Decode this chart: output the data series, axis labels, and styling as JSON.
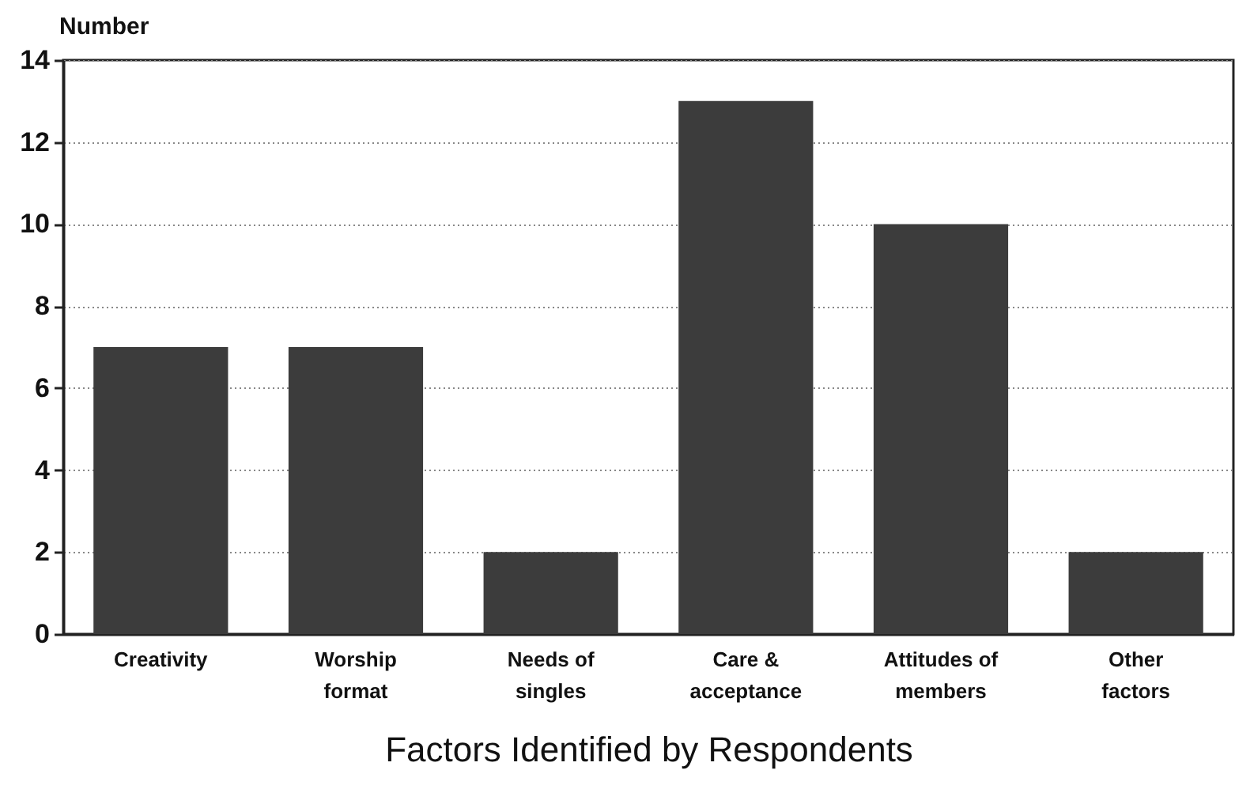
{
  "chart_data": {
    "type": "bar",
    "xlabel": "Factors Identified by Respondents",
    "ylabel": "Number",
    "categories": [
      "Creativity",
      "Worship format",
      "Needs of singles",
      "Care & acceptance",
      "Attitudes of members",
      "Other factors"
    ],
    "values": [
      7,
      7,
      2,
      13,
      10,
      2
    ],
    "color": "#3c3c3c",
    "ylim": [
      0,
      14
    ],
    "yticks": [
      0,
      2,
      4,
      6,
      8,
      10,
      12,
      14
    ],
    "grid": "y"
  }
}
